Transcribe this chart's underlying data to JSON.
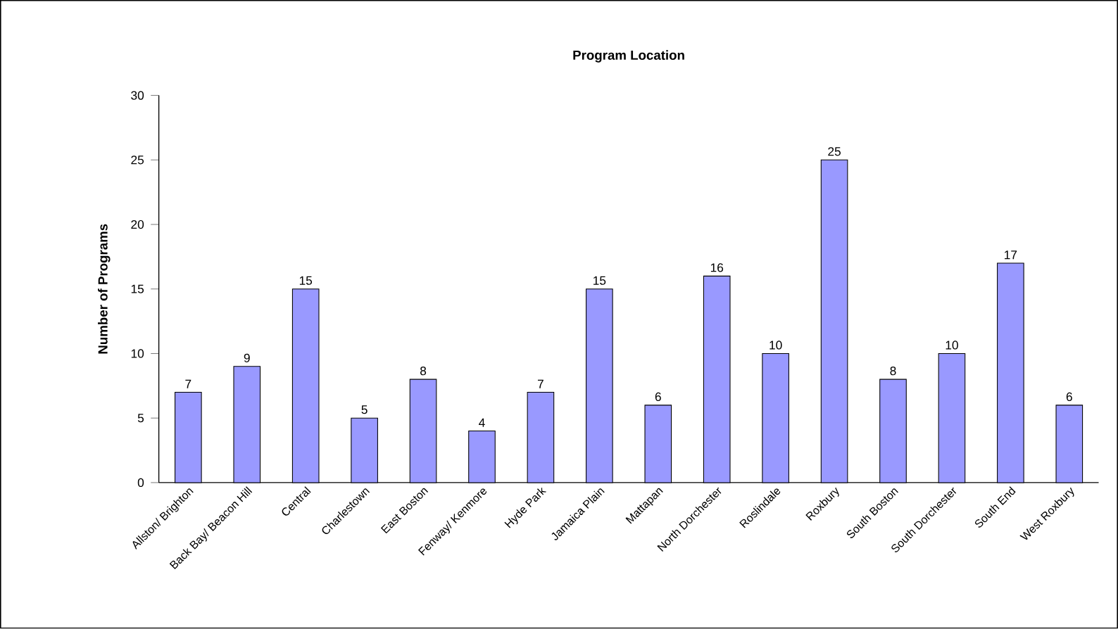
{
  "chart_data": {
    "type": "bar",
    "title": "Program Location",
    "ylabel": "Number of Programs",
    "categories": [
      "Allston/ Brighton",
      "Back Bay/ Beacon Hill",
      "Central",
      "Charlestown",
      "East Boston",
      "Fenway/ Kenmore",
      "Hyde Park",
      "Jamaica Plain",
      "Mattapan",
      "North Dorchester",
      "Roslindale",
      "Roxbury",
      "South Boston",
      "South Dorchester",
      "South End",
      "West Roxbury"
    ],
    "values": [
      7,
      9,
      15,
      5,
      8,
      4,
      7,
      15,
      6,
      16,
      10,
      25,
      8,
      10,
      17,
      6
    ],
    "color": "#9999ff",
    "ylim": [
      0,
      30
    ],
    "yticks": [
      0,
      5,
      10,
      15,
      20,
      25,
      30
    ],
    "data_labels": true
  }
}
